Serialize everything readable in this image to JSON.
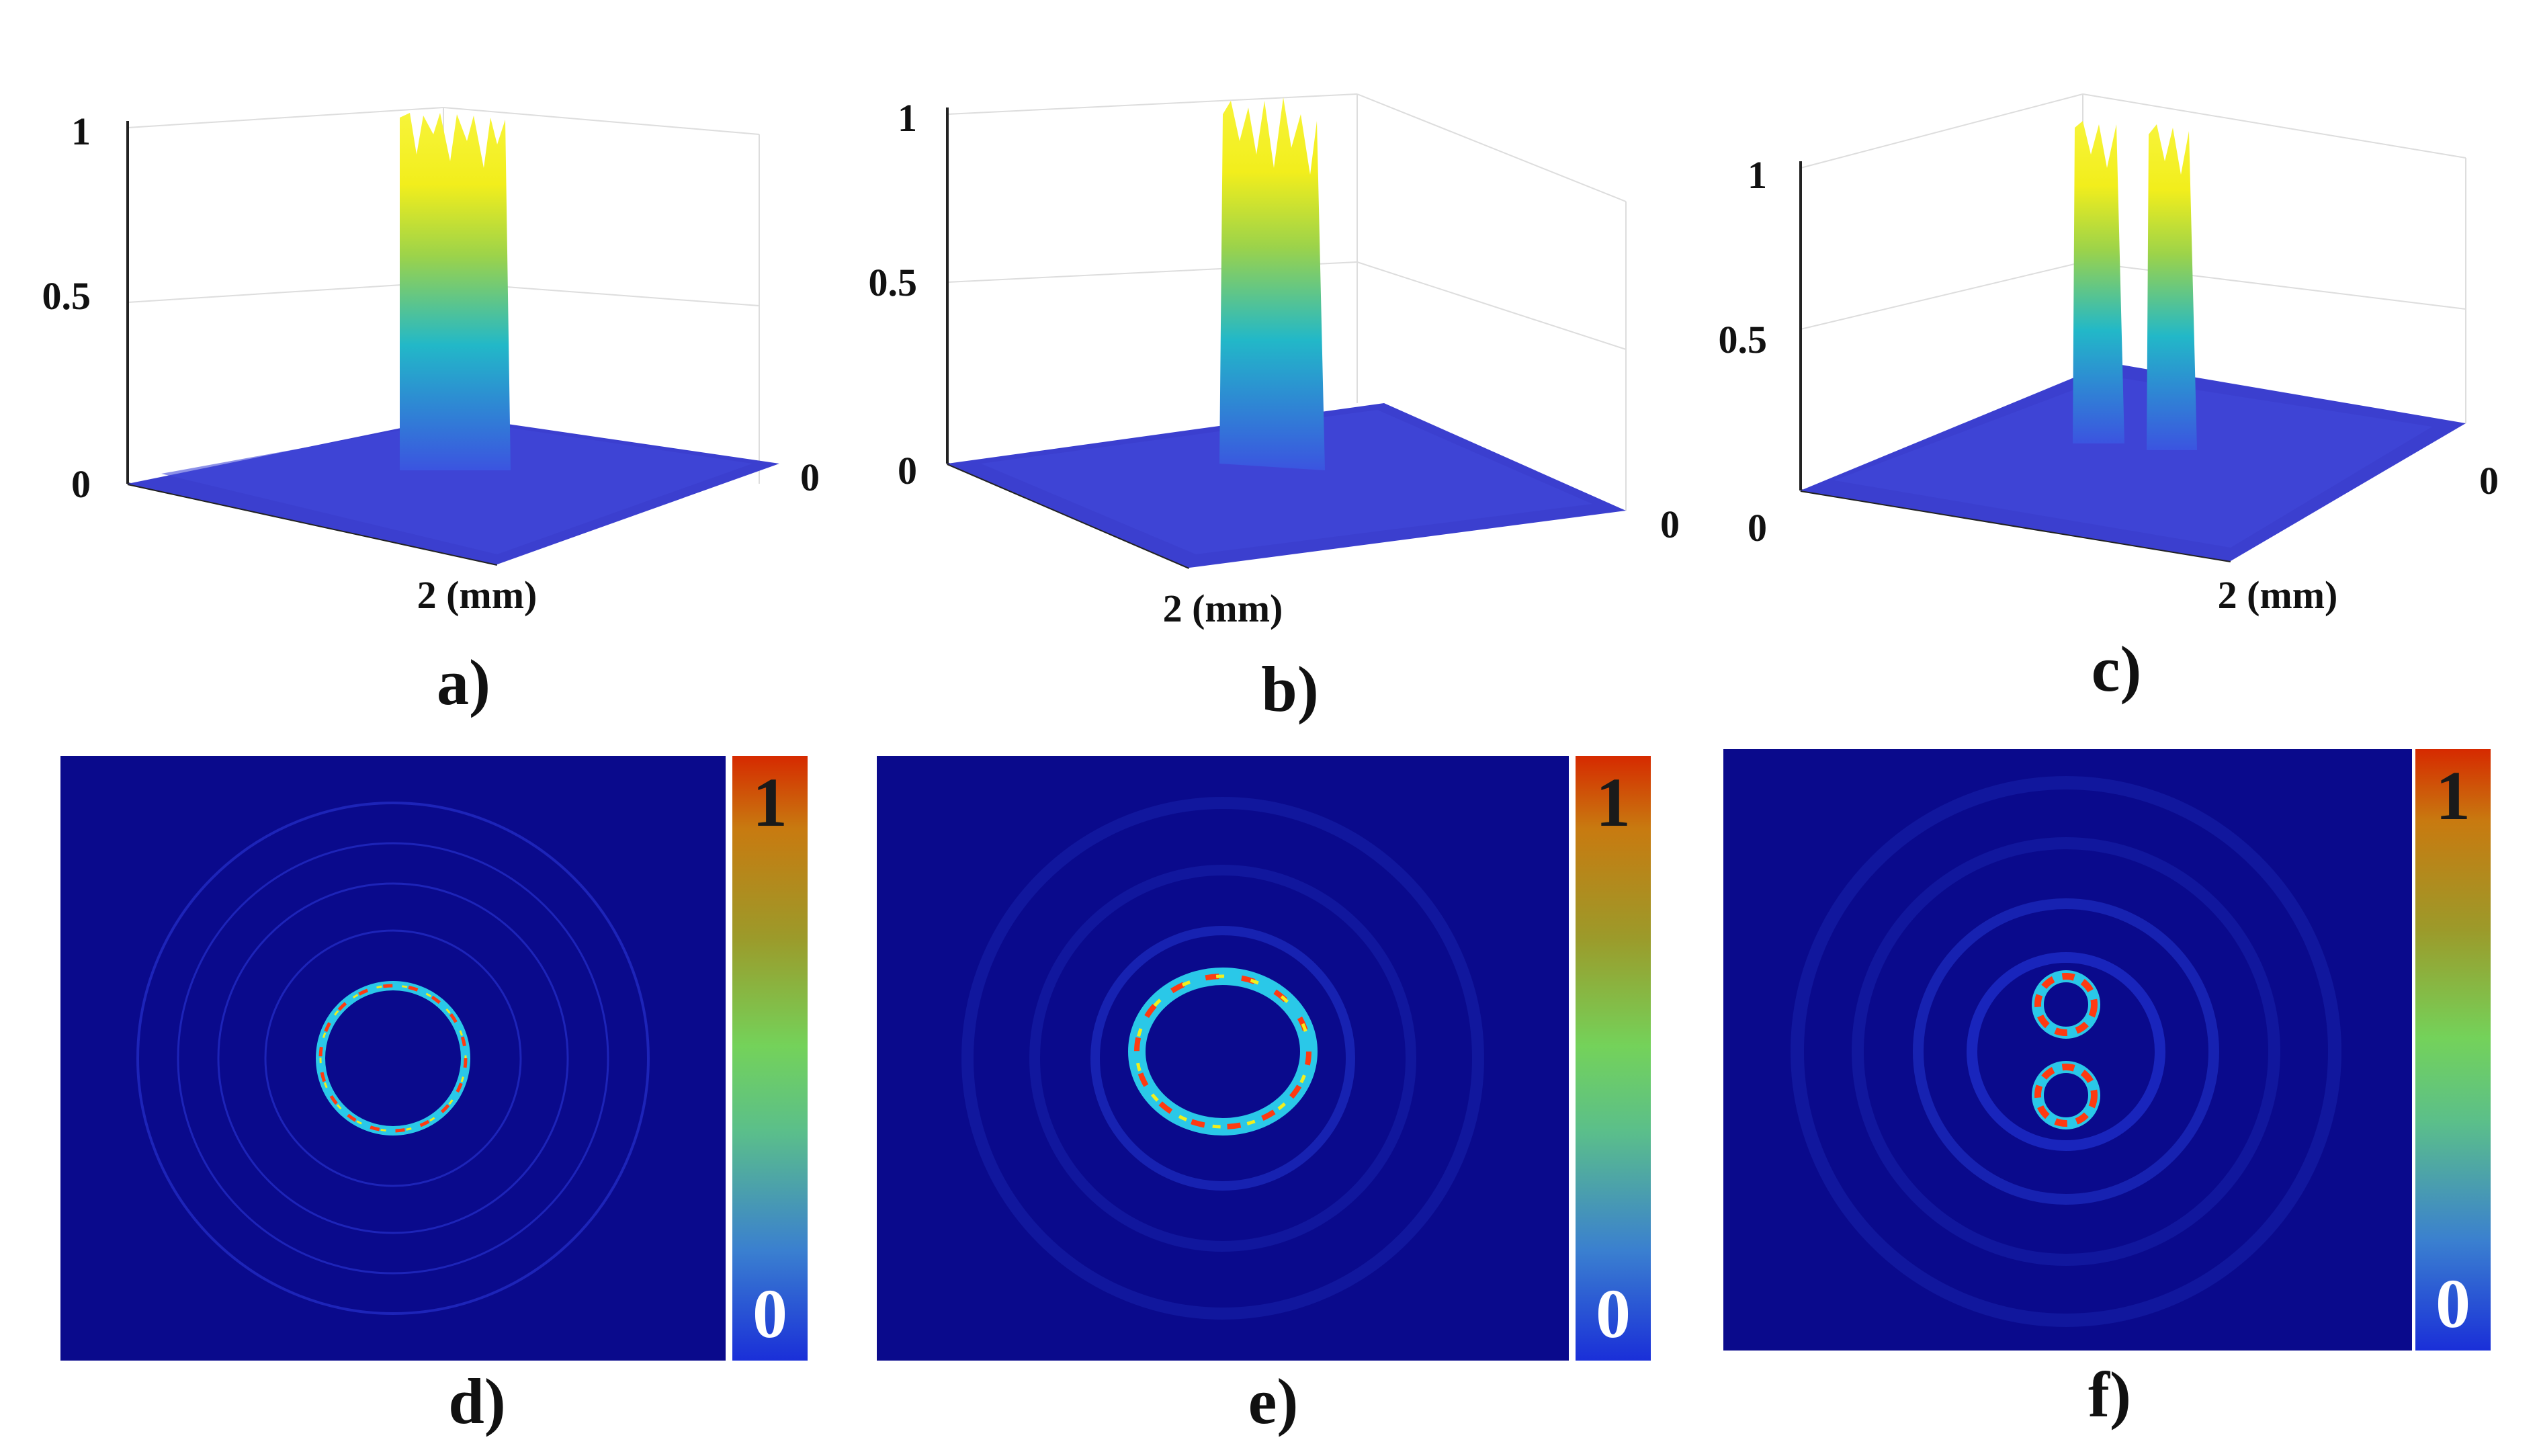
{
  "figure": {
    "panels_3d": [
      {
        "id": "a",
        "caption": "a)",
        "z_ticks": [
          "1",
          "0.5",
          "0"
        ],
        "x_tick": "0",
        "y_label": "2 (mm)",
        "peaks": 1
      },
      {
        "id": "b",
        "caption": "b)",
        "z_ticks": [
          "1",
          "0.5",
          "0"
        ],
        "x_tick": "0",
        "y_label": "2 (mm)",
        "peaks": 1
      },
      {
        "id": "c",
        "caption": "c)",
        "z_ticks": [
          "1",
          "0.5",
          "0"
        ],
        "x_tick": "0",
        "y_label": "2 (mm)",
        "peaks": 2
      }
    ],
    "panels_2d": [
      {
        "id": "d",
        "caption": "d)",
        "cbar_max": "1",
        "cbar_min": "0",
        "pattern": "single-ring"
      },
      {
        "id": "e",
        "caption": "e)",
        "cbar_max": "1",
        "cbar_min": "0",
        "pattern": "single-ring-distorted"
      },
      {
        "id": "f",
        "caption": "f)",
        "cbar_max": "1",
        "cbar_min": "0",
        "pattern": "double-ring"
      }
    ],
    "colors": {
      "background": "#0a0a8c",
      "surface_base": "#3b3fcf",
      "surface_peak": "#f2ee1c",
      "ring_hot": "#ff3a10"
    }
  }
}
